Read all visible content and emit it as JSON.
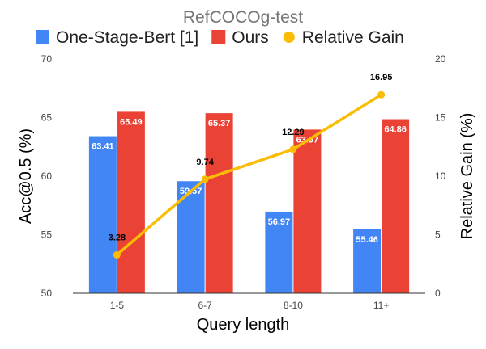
{
  "chart_data": {
    "type": "bar",
    "title": "RefCOCOg-test",
    "xlabel": "Query length",
    "ylabel": "Acc@0.5 (%)",
    "y2label": "Relative Gain (%)",
    "categories": [
      "1-5",
      "6-7",
      "8-10",
      "11+"
    ],
    "ylim": [
      50,
      70
    ],
    "yticks": [
      50,
      55,
      60,
      65,
      70
    ],
    "y2lim": [
      0,
      20
    ],
    "y2ticks": [
      0,
      5,
      10,
      15,
      20
    ],
    "grid": false,
    "legend_position": "top",
    "series": [
      {
        "name": "One-Stage-Bert [1]",
        "type": "bar",
        "axis": "left",
        "color": "#4285f4",
        "values": [
          63.41,
          59.57,
          56.97,
          55.46
        ],
        "labels": [
          "63.41",
          "59.57",
          "56.97",
          "55.46"
        ]
      },
      {
        "name": "Ours",
        "type": "bar",
        "axis": "left",
        "color": "#ea4335",
        "values": [
          65.49,
          65.37,
          63.97,
          64.86
        ],
        "labels": [
          "65.49",
          "65.37",
          "63.97",
          "64.86"
        ]
      },
      {
        "name": "Relative Gain",
        "type": "line",
        "axis": "right",
        "color": "#fbbc04",
        "values": [
          3.28,
          9.74,
          12.29,
          16.95
        ],
        "labels": [
          "3.28",
          "9.74",
          "12.29",
          "16.95"
        ]
      }
    ]
  }
}
